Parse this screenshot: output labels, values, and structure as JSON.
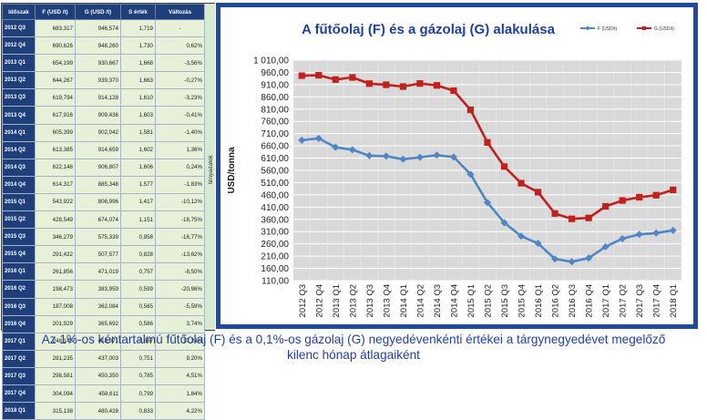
{
  "table": {
    "headers": [
      "Időszak",
      "F (USD /t)",
      "G (USD /t)",
      "S érték",
      "Változás"
    ],
    "side_label": "tényadatok",
    "rows": [
      [
        "2012 Q3",
        "683,317",
        "946,574",
        "1,719",
        "-"
      ],
      [
        "2012 Q4",
        "690,626",
        "948,260",
        "1,730",
        "0,62%"
      ],
      [
        "2013 Q1",
        "654,199",
        "930,667",
        "1,668",
        "-3,56%"
      ],
      [
        "2013 Q2",
        "644,267",
        "939,370",
        "1,663",
        "-0,27%"
      ],
      [
        "2013 Q3",
        "619,794",
        "914,128",
        "1,610",
        "-3,23%"
      ],
      [
        "2013 Q4",
        "617,916",
        "909,436",
        "1,603",
        "-0,41%"
      ],
      [
        "2014 Q1",
        "605,399",
        "902,042",
        "1,581",
        "-1,40%"
      ],
      [
        "2014 Q2",
        "613,385",
        "914,659",
        "1,602",
        "1,36%"
      ],
      [
        "2014 Q3",
        "622,148",
        "906,807",
        "1,606",
        "0,24%"
      ],
      [
        "2014 Q4",
        "614,317",
        "885,348",
        "1,577",
        "-1,83%"
      ],
      [
        "2015 Q1",
        "543,922",
        "806,996",
        "1,417",
        "-10,12%"
      ],
      [
        "2015 Q2",
        "428,549",
        "674,074",
        "1,151",
        "-18,75%"
      ],
      [
        "2015 Q3",
        "346,279",
        "575,339",
        "0,958",
        "-16,77%"
      ],
      [
        "2015 Q4",
        "291,422",
        "507,577",
        "0,828",
        "-13,62%"
      ],
      [
        "2016 Q1",
        "261,856",
        "471,019",
        "0,757",
        "-8,50%"
      ],
      [
        "2016 Q2",
        "198,473",
        "383,959",
        "0,599",
        "-20,96%"
      ],
      [
        "2016 Q3",
        "187,008",
        "362,084",
        "0,565",
        "-5,59%"
      ],
      [
        "2016 Q4",
        "201,929",
        "365,692",
        "0,586",
        "3,74%"
      ],
      [
        "2017 Q1",
        "248,145",
        "413,071",
        "0,687",
        "17,24%"
      ],
      [
        "2017 Q2",
        "281,235",
        "437,003",
        "0,751",
        "9,20%"
      ],
      [
        "2017 Q3",
        "298,581",
        "450,350",
        "0,785",
        "4,51%"
      ],
      [
        "2017 Q4",
        "304,094",
        "458,611",
        "0,799",
        "1,84%"
      ],
      [
        "2018 Q1",
        "315,138",
        "480,428",
        "0,833",
        "4,22%"
      ]
    ]
  },
  "chart_data": {
    "type": "line",
    "title": "A fűtőolaj (F) és a gázolaj (G) alakulása",
    "ylabel": "USD/tonna",
    "xlabel": "",
    "categories": [
      "2012 Q3",
      "2012 Q4",
      "2013 Q1",
      "2013 Q2",
      "2013 Q3",
      "2013 Q4",
      "2014 Q1",
      "2014 Q2",
      "2014 Q3",
      "2014 Q4",
      "2015 Q1",
      "2015 Q2",
      "2015 Q3",
      "2015 Q4",
      "2016 Q1",
      "2016 Q2",
      "2016 Q3",
      "2016 Q4",
      "2017 Q1",
      "2017 Q2",
      "2017 Q3",
      "2017 Q4",
      "2018 Q1"
    ],
    "yticks": [
      "110,00",
      "160,00",
      "210,00",
      "260,00",
      "310,00",
      "360,00",
      "410,00",
      "460,00",
      "510,00",
      "560,00",
      "610,00",
      "660,00",
      "710,00",
      "760,00",
      "810,00",
      "860,00",
      "910,00",
      "960,00",
      "1 010,00"
    ],
    "ylim": [
      110,
      1010
    ],
    "grid": true,
    "legend_position": "top-right",
    "series": [
      {
        "name": "F (USD/t)",
        "color": "#4f86c6",
        "values": [
          683.317,
          690.626,
          654.199,
          644.267,
          619.794,
          617.916,
          605.399,
          613.385,
          622.148,
          614.317,
          543.922,
          428.549,
          346.279,
          291.422,
          261.856,
          198.473,
          187.008,
          201.929,
          248.145,
          281.235,
          298.581,
          304.094,
          315.138
        ]
      },
      {
        "name": "G (USD/t)",
        "color": "#c0201e",
        "values": [
          946.574,
          948.26,
          930.667,
          939.37,
          914.128,
          909.436,
          902.042,
          914.659,
          906.807,
          885.348,
          806.996,
          674.074,
          575.339,
          507.577,
          471.019,
          383.959,
          362.084,
          365.692,
          413.071,
          437.003,
          450.35,
          458.611,
          480.428
        ]
      }
    ]
  },
  "caption_lines": [
    "Az 1%-os kéntartalmú fűtőolaj (F) és a 0,1%-os gázolaj (G) negyedévenkénti értékei a tárgynegyedévet megelőző",
    "kilenc hónap átlagaiként"
  ]
}
